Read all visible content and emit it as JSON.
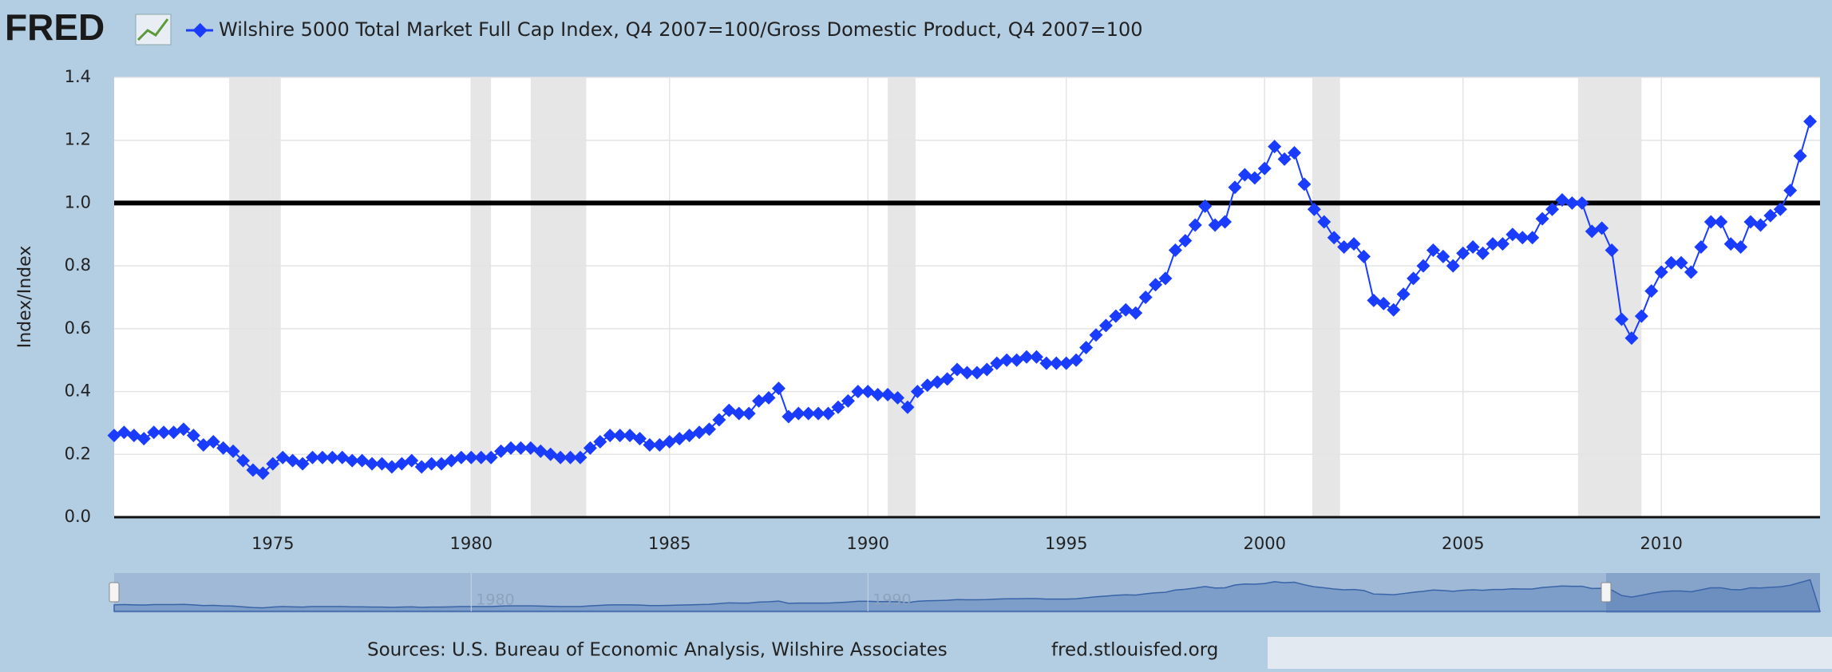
{
  "header": {
    "logo": "FRED"
  },
  "chart_data": {
    "type": "line",
    "series": [
      {
        "name": "Wilshire 5000 Total Market Full Cap Index, Q4 2007=100/Gross Domestic Product, Q4 2007=100",
        "color": "#1a3cff",
        "values": [
          0.26,
          0.27,
          0.26,
          0.25,
          0.27,
          0.27,
          0.27,
          0.28,
          0.26,
          0.23,
          0.24,
          0.22,
          0.21,
          0.18,
          0.15,
          0.14,
          0.17,
          0.19,
          0.18,
          0.17,
          0.19,
          0.19,
          0.19,
          0.19,
          0.18,
          0.18,
          0.17,
          0.17,
          0.16,
          0.17,
          0.18,
          0.16,
          0.17,
          0.17,
          0.18,
          0.19,
          0.19,
          0.19,
          0.19,
          0.21,
          0.22,
          0.22,
          0.22,
          0.21,
          0.2,
          0.19,
          0.19,
          0.19,
          0.22,
          0.24,
          0.26,
          0.26,
          0.26,
          0.25,
          0.23,
          0.23,
          0.24,
          0.25,
          0.26,
          0.27,
          0.28,
          0.31,
          0.34,
          0.33,
          0.33,
          0.37,
          0.38,
          0.41,
          0.32,
          0.33,
          0.33,
          0.33,
          0.33,
          0.35,
          0.37,
          0.4,
          0.4,
          0.39,
          0.39,
          0.38,
          0.35,
          0.4,
          0.42,
          0.43,
          0.44,
          0.47,
          0.46,
          0.46,
          0.47,
          0.49,
          0.5,
          0.5,
          0.51,
          0.51,
          0.49,
          0.49,
          0.49,
          0.5,
          0.54,
          0.58,
          0.61,
          0.64,
          0.66,
          0.65,
          0.7,
          0.74,
          0.76,
          0.85,
          0.88,
          0.93,
          0.99,
          0.93,
          0.94,
          1.05,
          1.09,
          1.08,
          1.11,
          1.18,
          1.14,
          1.16,
          1.06,
          0.98,
          0.94,
          0.89,
          0.86,
          0.87,
          0.83,
          0.69,
          0.68,
          0.66,
          0.71,
          0.76,
          0.8,
          0.85,
          0.83,
          0.8,
          0.84,
          0.86,
          0.84,
          0.87,
          0.87,
          0.9,
          0.89,
          0.89,
          0.95,
          0.98,
          1.01,
          1.0,
          1.0,
          0.91,
          0.92,
          0.85,
          0.63,
          0.57,
          0.64,
          0.72,
          0.78,
          0.81,
          0.81,
          0.78,
          0.86,
          0.94,
          0.94,
          0.87,
          0.86,
          0.94,
          0.93,
          0.96,
          0.98,
          1.04,
          1.15,
          1.26
        ]
      }
    ],
    "x": [
      1971,
      1971.25,
      1971.5,
      1971.75,
      1972,
      1972.25,
      1972.5,
      1972.75,
      1973,
      1973.25,
      1973.5,
      1973.75,
      1974,
      1974.25,
      1974.5,
      1974.75,
      1975,
      1975.25,
      1975.5,
      1975.75,
      1976,
      1976.25,
      1976.5,
      1976.75,
      1977,
      1977.25,
      1977.5,
      1977.75,
      1978,
      1978.25,
      1978.5,
      1978.75,
      1979,
      1979.25,
      1979.5,
      1979.75,
      1980,
      1980.25,
      1980.5,
      1980.75,
      1981,
      1981.25,
      1981.5,
      1981.75,
      1982,
      1982.25,
      1982.5,
      1982.75,
      1983,
      1983.25,
      1983.5,
      1983.75,
      1984,
      1984.25,
      1984.5,
      1984.75,
      1985,
      1985.25,
      1985.5,
      1985.75,
      1986,
      1986.25,
      1986.5,
      1986.75,
      1987,
      1987.25,
      1987.5,
      1987.75,
      1988,
      1988.25,
      1988.5,
      1988.75,
      1989,
      1989.25,
      1989.5,
      1989.75,
      1990,
      1990.25,
      1990.5,
      1990.75,
      1991,
      1991.25,
      1991.5,
      1991.75,
      1992,
      1992.25,
      1992.5,
      1992.75,
      1993,
      1993.25,
      1993.5,
      1993.75,
      1994,
      1994.25,
      1994.5,
      1994.75,
      1995,
      1995.25,
      1995.5,
      1995.75,
      1996,
      1996.25,
      1996.5,
      1996.75,
      1997,
      1997.25,
      1997.5,
      1997.75,
      1998,
      1998.25,
      1998.5,
      1998.75,
      1999,
      1999.25,
      1999.5,
      1999.75,
      2000,
      2000.25,
      2000.5,
      2000.75,
      2001,
      2001.25,
      2001.5,
      2001.75,
      2002,
      2002.25,
      2002.5,
      2002.75,
      2003,
      2003.25,
      2003.5,
      2003.75,
      2004,
      2004.25,
      2004.5,
      2004.75,
      2005,
      2005.25,
      2005.5,
      2005.75,
      2006,
      2006.25,
      2006.5,
      2006.75,
      2007,
      2007.25,
      2007.5,
      2007.75,
      2008,
      2008.25,
      2008.5,
      2008.75,
      2009,
      2009.25,
      2009.5,
      2009.75,
      2010,
      2010.25,
      2010.5,
      2010.75,
      2011,
      2011.25,
      2011.5,
      2011.75,
      2012,
      2012.25,
      2012.5,
      2012.75,
      2013,
      2013.25,
      2013.5,
      2013.75
    ],
    "xlim": [
      1971,
      2014
    ],
    "xticks": [
      1975,
      1980,
      1985,
      1990,
      1995,
      2000,
      2005,
      2010
    ],
    "ylim": [
      0,
      1.4
    ],
    "yticks": [
      {
        "value": 0,
        "label": "0.0"
      },
      {
        "value": 0.2,
        "label": "0.2"
      },
      {
        "value": 0.4,
        "label": "0.4"
      },
      {
        "value": 0.6,
        "label": "0.6"
      },
      {
        "value": 0.8,
        "label": "0.8"
      },
      {
        "value": 1,
        "label": "1.0"
      },
      {
        "value": 1.2,
        "label": "1.2"
      },
      {
        "value": 1.4,
        "label": "1.4"
      }
    ],
    "y_label": "Index/Index",
    "grid": true,
    "recessions": [
      [
        1973.9,
        1975.2
      ],
      [
        1980.0,
        1980.5
      ],
      [
        1981.5,
        1982.9
      ],
      [
        1990.5,
        1991.2
      ],
      [
        2001.2,
        2001.9
      ],
      [
        2007.9,
        2009.5
      ]
    ],
    "reference_line": 1.0,
    "navigator_ticks": [
      1980,
      1990
    ]
  },
  "footer": {
    "sources": "Sources: U.S. Bureau of Economic Analysis, Wilshire Associates",
    "site": "fred.stlouisfed.org"
  }
}
